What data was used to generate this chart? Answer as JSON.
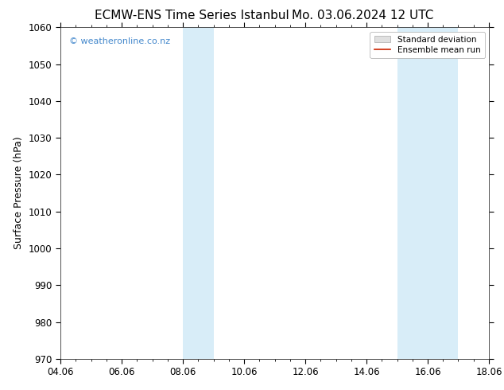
{
  "title": "ECMW-ENS Time Series Istanbul",
  "title2": "Mo. 03.06.2024 12 UTC",
  "ylabel": "Surface Pressure (hPa)",
  "ylim": [
    970,
    1060
  ],
  "yticks": [
    970,
    980,
    990,
    1000,
    1010,
    1020,
    1030,
    1040,
    1050,
    1060
  ],
  "xlim_start": 0,
  "xlim_end": 14,
  "xtick_labels": [
    "04.06",
    "06.06",
    "08.06",
    "10.06",
    "12.06",
    "14.06",
    "16.06",
    "18.06"
  ],
  "xtick_positions": [
    0,
    2,
    4,
    6,
    8,
    10,
    12,
    14
  ],
  "shaded_bands": [
    {
      "x_start": 4,
      "x_end": 5
    },
    {
      "x_start": 11,
      "x_end": 13
    }
  ],
  "shaded_color": "#d8edf8",
  "bg_color": "#ffffff",
  "plot_bg_color": "#ffffff",
  "watermark_text": "© weatheronline.co.nz",
  "watermark_color": "#4488cc",
  "legend_std_color": "#cccccc",
  "legend_mean_color": "#cc2200",
  "title_fontsize": 11,
  "label_fontsize": 9,
  "tick_fontsize": 8.5,
  "title_gap": "     "
}
